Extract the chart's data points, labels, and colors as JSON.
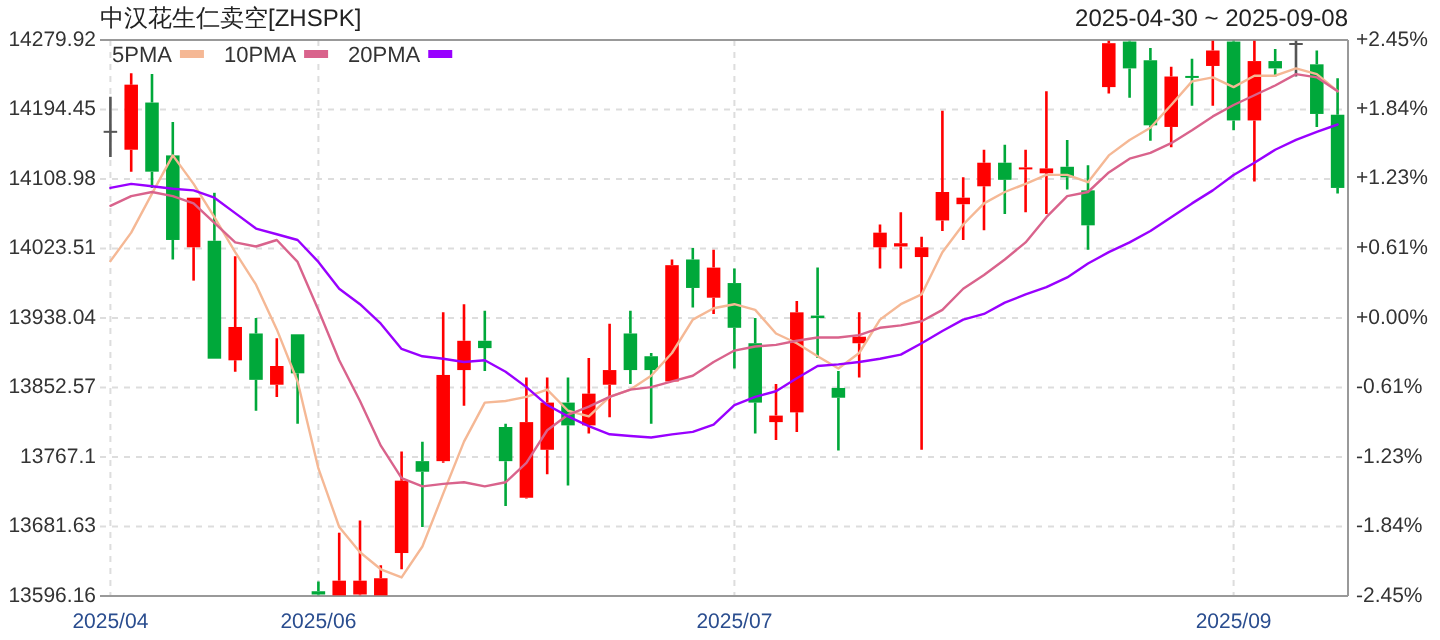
{
  "chart_data": {
    "type": "candlestick",
    "title": "中汉花生仁卖空[ZHSPK]",
    "subtitle": "2025-04-30 ~ 2025-09-08",
    "categories": [
      "2025/04",
      null,
      null,
      null,
      null,
      null,
      null,
      null,
      null,
      null,
      "2025/06",
      null,
      null,
      null,
      null,
      null,
      null,
      null,
      null,
      null,
      null,
      null,
      null,
      null,
      null,
      null,
      null,
      null,
      null,
      null,
      "2025/07",
      null,
      null,
      null,
      null,
      null,
      null,
      null,
      null,
      null,
      null,
      null,
      null,
      null,
      null,
      null,
      null,
      null,
      null,
      null,
      null,
      null,
      null,
      null,
      "2025/09",
      null,
      null,
      null,
      null,
      null
    ],
    "ohlc": [
      [
        14167,
        14210,
        14136,
        14167
      ],
      [
        14145,
        14239,
        14118,
        14225
      ],
      [
        14203,
        14238,
        14098,
        14118
      ],
      [
        14138,
        14179,
        14010,
        14034
      ],
      [
        14025,
        14086,
        13984,
        14086
      ],
      [
        14033,
        14092,
        13888,
        13888
      ],
      [
        13886,
        14014,
        13872,
        13927
      ],
      [
        13919,
        13938,
        13824,
        13862
      ],
      [
        13856,
        13913,
        13841,
        13879
      ],
      [
        13918,
        13918,
        13808,
        13870
      ],
      [
        13602,
        13614,
        13597,
        13598
      ],
      [
        13597,
        13674,
        13597,
        13615
      ],
      [
        13598,
        13689,
        13597,
        13615
      ],
      [
        13597,
        13634,
        13597,
        13618
      ],
      [
        13649,
        13774,
        13629,
        13738
      ],
      [
        13762,
        13786,
        13681,
        13749
      ],
      [
        13762,
        13945,
        13760,
        13868
      ],
      [
        13874,
        13955,
        13830,
        13910
      ],
      [
        13910,
        13947,
        13873,
        13901
      ],
      [
        13804,
        13808,
        13707,
        13762
      ],
      [
        13717,
        13865,
        13716,
        13810
      ],
      [
        13776,
        13865,
        13746,
        13834
      ],
      [
        13834,
        13865,
        13732,
        13806
      ],
      [
        13806,
        13889,
        13796,
        13845
      ],
      [
        13856,
        13931,
        13816,
        13874
      ],
      [
        13919,
        13947,
        13857,
        13874
      ],
      [
        13891,
        13895,
        13808,
        13874
      ],
      [
        13860,
        14010,
        13860,
        14003
      ],
      [
        14010,
        14024,
        13951,
        13975
      ],
      [
        13963,
        14022,
        13943,
        14000
      ],
      [
        13981,
        13999,
        13876,
        13926
      ],
      [
        13907,
        13938,
        13796,
        13834
      ],
      [
        13810,
        13857,
        13788,
        13818
      ],
      [
        13822,
        13959,
        13798,
        13945
      ],
      [
        13941,
        14000,
        13889,
        13938
      ],
      [
        13852,
        13873,
        13775,
        13840
      ],
      [
        13907,
        13945,
        13865,
        13915
      ],
      [
        14025,
        14053,
        13999,
        14043
      ],
      [
        14026,
        14068,
        13999,
        14030
      ],
      [
        14013,
        14038,
        13776,
        14025
      ],
      [
        14058,
        14193,
        14045,
        14093
      ],
      [
        14078,
        14111,
        14034,
        14086
      ],
      [
        14100,
        14145,
        14046,
        14129
      ],
      [
        14129,
        14151,
        14066,
        14108
      ],
      [
        14121,
        14145,
        14068,
        14123
      ],
      [
        14116,
        14217,
        14066,
        14122
      ],
      [
        14124,
        14157,
        14096,
        14111
      ],
      [
        14095,
        14126,
        14022,
        14052
      ],
      [
        14222,
        14279,
        14214,
        14276
      ],
      [
        14278,
        14279,
        14209,
        14245
      ],
      [
        14255,
        14270,
        14156,
        14175
      ],
      [
        14173,
        14247,
        14148,
        14235
      ],
      [
        14235,
        14257,
        14199,
        14234
      ],
      [
        14248,
        14279,
        14199,
        14267
      ],
      [
        14278,
        14279,
        14169,
        14181
      ],
      [
        14181,
        14279,
        14106,
        14254
      ],
      [
        14254,
        14269,
        14235,
        14245
      ],
      [
        14275,
        14279,
        14235,
        14275
      ],
      [
        14250,
        14267,
        14173,
        14189
      ],
      [
        14188,
        14233,
        14091,
        14098
      ]
    ],
    "colors": [
      "#555555",
      "#ff0000",
      "#00a83a",
      "#00a83a",
      "#ff0000",
      "#00a83a",
      "#ff0000",
      "#00a83a",
      "#ff0000",
      "#00a83a",
      "#00a83a",
      "#ff0000",
      "#ff0000",
      "#ff0000",
      "#ff0000",
      "#00a83a",
      "#ff0000",
      "#ff0000",
      "#00a83a",
      "#00a83a",
      "#ff0000",
      "#ff0000",
      "#00a83a",
      "#ff0000",
      "#ff0000",
      "#00a83a",
      "#00a83a",
      "#ff0000",
      "#00a83a",
      "#ff0000",
      "#00a83a",
      "#00a83a",
      "#ff0000",
      "#ff0000",
      "#00a83a",
      "#00a83a",
      "#ff0000",
      "#ff0000",
      "#ff0000",
      "#ff0000",
      "#ff0000",
      "#ff0000",
      "#ff0000",
      "#00a83a",
      "#ff0000",
      "#ff0000",
      "#00a83a",
      "#00a83a",
      "#ff0000",
      "#00a83a",
      "#00a83a",
      "#ff0000",
      "#00a83a",
      "#ff0000",
      "#00a83a",
      "#ff0000",
      "#00a83a",
      "#555555",
      "#00a83a",
      "#00a83a"
    ],
    "series": [
      {
        "name": "5PMA",
        "type": "line",
        "color": "#f5b895",
        "values": [
          14008,
          14043,
          14091,
          14138,
          14103,
          14062,
          14019,
          13979,
          13924,
          13860,
          13753,
          13681,
          13650,
          13629,
          13619,
          13657,
          13722,
          13786,
          13834,
          13836,
          13841,
          13850,
          13824,
          13817,
          13841,
          13850,
          13867,
          13895,
          13936,
          13950,
          13955,
          13948,
          13919,
          13907,
          13891,
          13876,
          13895,
          13936,
          13955,
          13967,
          14019,
          14053,
          14079,
          14093,
          14103,
          14114,
          14114,
          14105,
          14138,
          14157,
          14172,
          14200,
          14229,
          14234,
          14222,
          14236,
          14236,
          14245,
          14238,
          14217
        ]
      },
      {
        "name": "10PMA",
        "type": "line",
        "color": "#d9638c",
        "values": [
          14076,
          14088,
          14093,
          14088,
          14079,
          14055,
          14031,
          14026,
          14034,
          14007,
          13948,
          13886,
          13836,
          13781,
          13741,
          13731,
          13734,
          13736,
          13731,
          13736,
          13760,
          13800,
          13819,
          13829,
          13841,
          13850,
          13853,
          13860,
          13867,
          13884,
          13898,
          13903,
          13905,
          13910,
          13914,
          13914,
          13917,
          13926,
          13929,
          13934,
          13948,
          13974,
          13991,
          14010,
          14031,
          14062,
          14088,
          14093,
          14117,
          14134,
          14141,
          14153,
          14169,
          14186,
          14200,
          14212,
          14224,
          14238,
          14234,
          14217
        ]
      },
      {
        "name": "20PMA",
        "type": "line",
        "color": "#9900ff",
        "values": [
          14098,
          14103,
          14100,
          14097,
          14095,
          14086,
          14067,
          14048,
          14041,
          14034,
          14007,
          13974,
          13955,
          13931,
          13900,
          13891,
          13888,
          13884,
          13886,
          13872,
          13853,
          13831,
          13817,
          13805,
          13795,
          13793,
          13791,
          13795,
          13798,
          13807,
          13831,
          13841,
          13848,
          13864,
          13879,
          13881,
          13884,
          13888,
          13893,
          13907,
          13922,
          13936,
          13943,
          13957,
          13967,
          13976,
          13988,
          14005,
          14019,
          14031,
          14045,
          14062,
          14079,
          14095,
          14114,
          14129,
          14145,
          14157,
          14167,
          14176
        ]
      }
    ],
    "ylim": [
      13596.16,
      14279.92
    ],
    "yticks": [
      13596.16,
      13681.63,
      13767.1,
      13852.57,
      13938.04,
      14023.51,
      14108.98,
      14194.45,
      14279.92
    ],
    "y2lim": [
      -2.45,
      2.45
    ],
    "y2ticks": [
      {
        "value": -2.45,
        "label": "-2.45%"
      },
      {
        "value": -1.84,
        "label": "-1.84%"
      },
      {
        "value": -1.23,
        "label": "-1.23%"
      },
      {
        "value": -0.61,
        "label": "-0.61%"
      },
      {
        "value": 0,
        "label": "+0.00%"
      },
      {
        "value": 0.61,
        "label": "+0.61%"
      },
      {
        "value": 1.23,
        "label": "+1.23%"
      },
      {
        "value": 1.84,
        "label": "+1.84%"
      },
      {
        "value": 2.45,
        "label": "+2.45%"
      }
    ],
    "grid": true,
    "legend": "top left"
  }
}
